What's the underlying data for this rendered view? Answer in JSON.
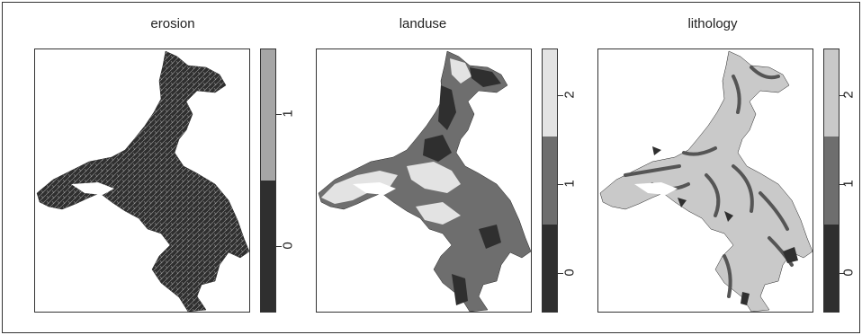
{
  "panels": [
    {
      "title": "erosion",
      "legend": {
        "classes": [
          {
            "label": "0",
            "color": "#2f2f2f"
          },
          {
            "label": "1",
            "color": "#a6a6a6"
          }
        ]
      }
    },
    {
      "title": "landuse",
      "legend": {
        "classes": [
          {
            "label": "0",
            "color": "#2f2f2f"
          },
          {
            "label": "1",
            "color": "#6e6e6e"
          },
          {
            "label": "2",
            "color": "#e3e3e3"
          }
        ]
      }
    },
    {
      "title": "lithology",
      "legend": {
        "classes": [
          {
            "label": "0",
            "color": "#2f2f2f"
          },
          {
            "label": "1",
            "color": "#6e6e6e"
          },
          {
            "label": "2",
            "color": "#c9c9c9"
          }
        ]
      }
    }
  ]
}
